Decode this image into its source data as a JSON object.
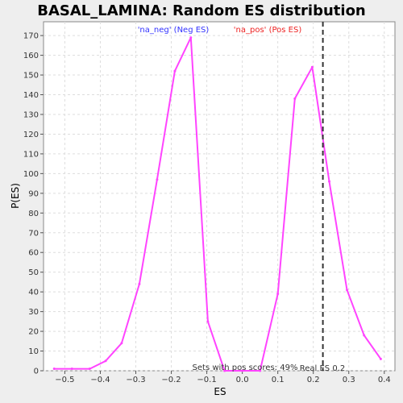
{
  "chart_data": {
    "type": "line",
    "title": "BASAL_LAMINA: Random ES distribution",
    "xlabel": "ES",
    "ylabel": "P(ES)",
    "xlim": [
      -0.56,
      0.43
    ],
    "ylim": [
      0,
      177
    ],
    "x_ticks": [
      -0.5,
      -0.4,
      -0.3,
      -0.2,
      -0.1,
      0.0,
      0.1,
      0.2,
      0.3,
      0.4
    ],
    "x_tick_labels": [
      "−0.5",
      "−0.4",
      "−0.3",
      "−0.2",
      "−0.1",
      "0.0",
      "0.1",
      "0.2",
      "0.3",
      "0.4"
    ],
    "y_ticks": [
      0,
      10,
      20,
      30,
      40,
      50,
      60,
      70,
      80,
      90,
      100,
      110,
      120,
      130,
      140,
      150,
      160,
      170
    ],
    "grid": true,
    "series": [
      {
        "color": "#ff44ff",
        "points": [
          [
            -0.53,
            1
          ],
          [
            -0.48,
            1
          ],
          [
            -0.43,
            1
          ],
          [
            -0.385,
            5
          ],
          [
            -0.34,
            14
          ],
          [
            -0.29,
            44
          ],
          [
            -0.24,
            97
          ],
          [
            -0.19,
            152
          ],
          [
            -0.145,
            169
          ],
          [
            -0.097,
            25
          ],
          [
            -0.05,
            0
          ],
          [
            0.0,
            0
          ],
          [
            0.05,
            0
          ],
          [
            0.1,
            39
          ],
          [
            0.148,
            138
          ],
          [
            0.197,
            154
          ],
          [
            0.245,
            96
          ],
          [
            0.295,
            41
          ],
          [
            0.343,
            18
          ],
          [
            0.39,
            6
          ]
        ]
      }
    ],
    "legend": {
      "position": "top",
      "neg_label": "'na_neg' (Neg ES)",
      "pos_label": "'na_pos' (Pos ES)",
      "neg_color": "#3333ff",
      "pos_color": "#ee2222"
    },
    "annotations": {
      "real_es_label": "Real ES 0.2",
      "real_es_value": 0.227,
      "pos_scores_text": "Sets with pos scores: 49%"
    }
  }
}
